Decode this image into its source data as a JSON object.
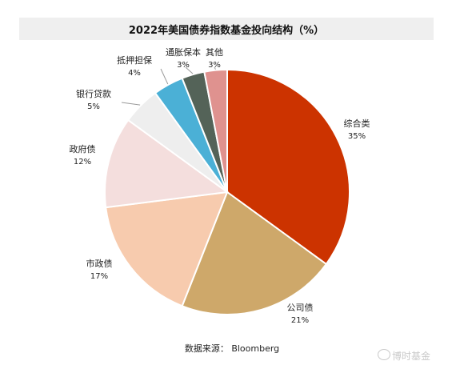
{
  "chart_data": {
    "type": "pie",
    "title": "2022年美国债券指数基金投向结构（%）",
    "slices": [
      {
        "label": "综合类",
        "value_label": "35%",
        "value": 35,
        "color": "#cc3300"
      },
      {
        "label": "公司债",
        "value_label": "21%",
        "value": 21,
        "color": "#cea86a"
      },
      {
        "label": "市政债",
        "value_label": "17%",
        "value": 17,
        "color": "#f7cbae"
      },
      {
        "label": "政府债",
        "value_label": "12%",
        "value": 12,
        "color": "#f4dedd"
      },
      {
        "label": "银行贷款",
        "value_label": "5%",
        "value": 5,
        "color": "#eeeeee"
      },
      {
        "label": "抵押担保",
        "value_label": "4%",
        "value": 4,
        "color": "#4bb0d6"
      },
      {
        "label": "通胀保本",
        "value_label": "3%",
        "value": 3,
        "color": "#546358"
      },
      {
        "label": "其他",
        "value_label": "3%",
        "value": 3,
        "color": "#df928f"
      }
    ]
  },
  "source": "数据来源： Bloomberg",
  "watermark": "博时基金"
}
